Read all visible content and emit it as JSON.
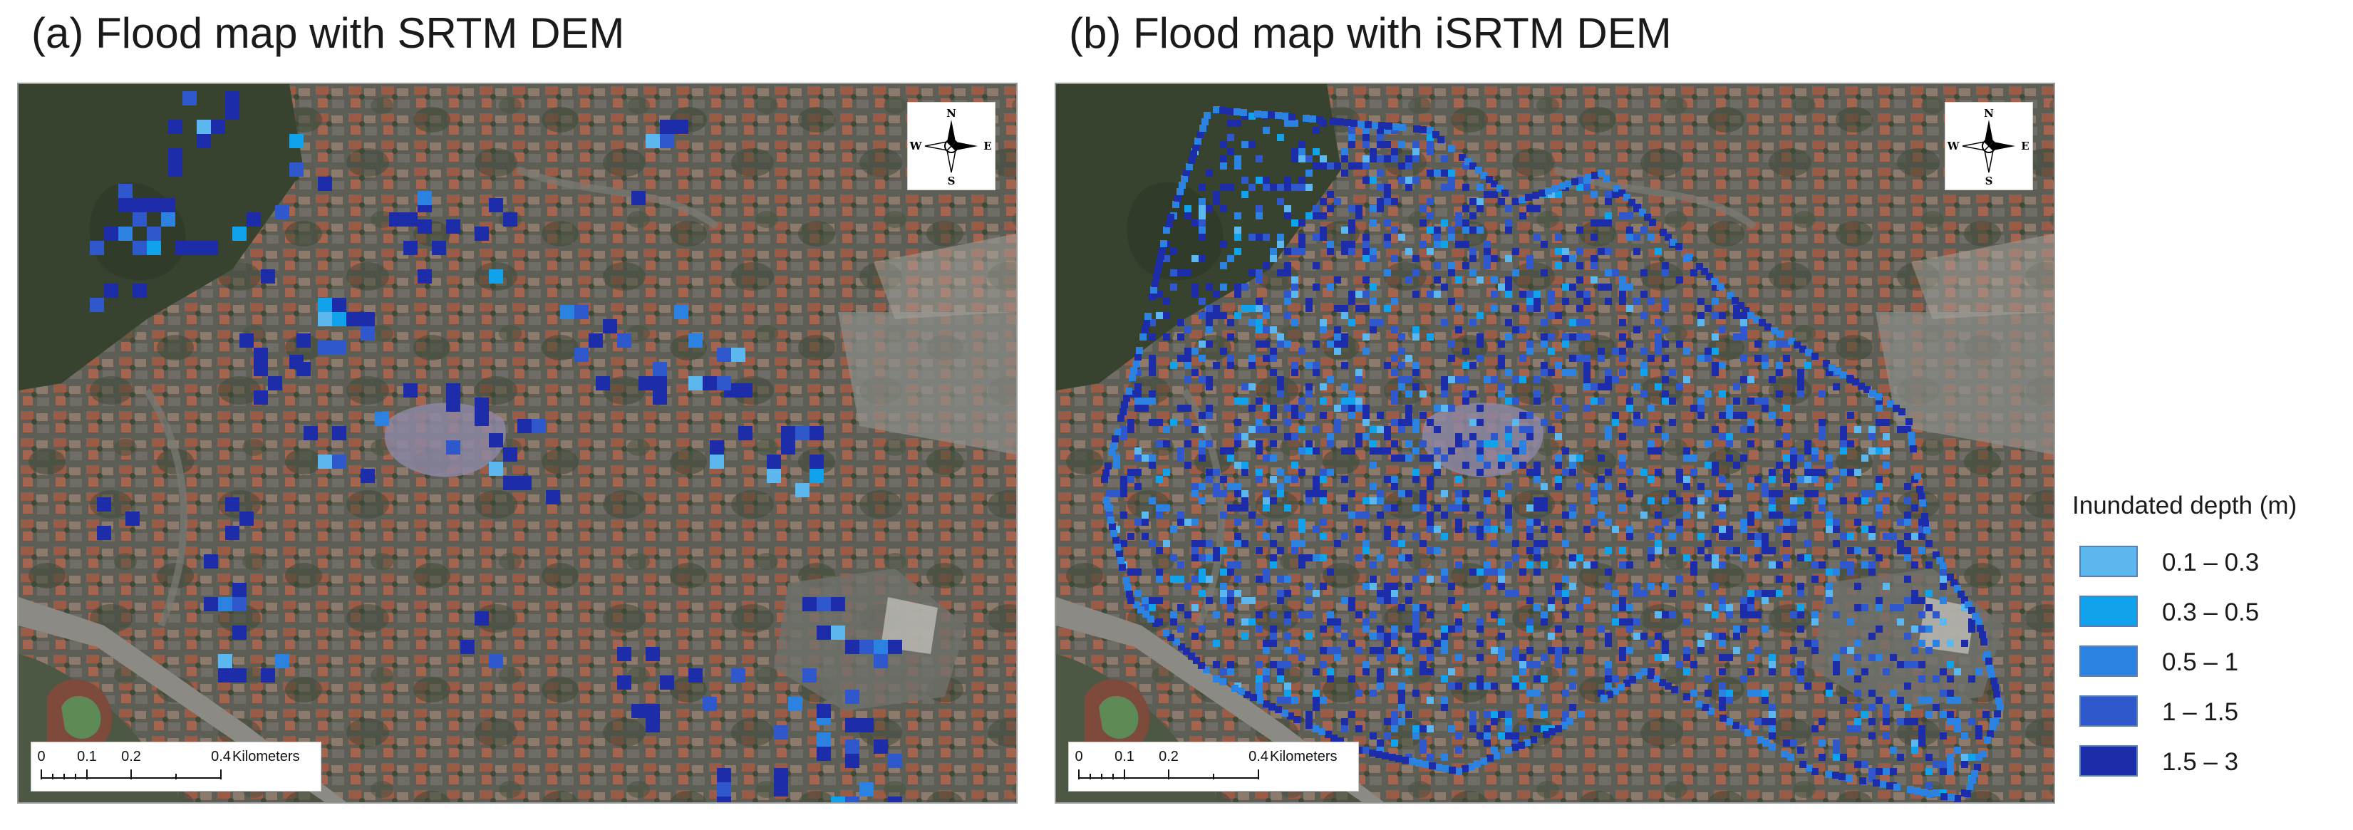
{
  "panels": {
    "a": {
      "title": "(a) Flood map with SRTM DEM"
    },
    "b": {
      "title": "(b) Flood map with iSRTM DEM"
    }
  },
  "compass": {
    "north": "N",
    "south": "S",
    "east": "E",
    "west": "W",
    "icon": "compass-rose-icon"
  },
  "scalebar": {
    "ticks": [
      "0",
      "0.1",
      "0.2",
      "0.4"
    ],
    "unit": "Kilometers"
  },
  "legend": {
    "title": "Inundated depth (m)",
    "items": [
      {
        "label": "0.1 – 0.3",
        "color": "#5bb7ee"
      },
      {
        "label": "0.3 – 0.5",
        "color": "#11a2ec"
      },
      {
        "label": "0.5 – 1",
        "color": "#2c82e0"
      },
      {
        "label": "1 – 1.5",
        "color": "#2f58cc"
      },
      {
        "label": "1.5 – 3",
        "color": "#1d2ca8"
      }
    ]
  },
  "colors": {
    "aerial_base": "#5b5e54",
    "roof_red": "#9a5a45",
    "vegetation": "#4b5a40",
    "road": "#8a8c86"
  }
}
